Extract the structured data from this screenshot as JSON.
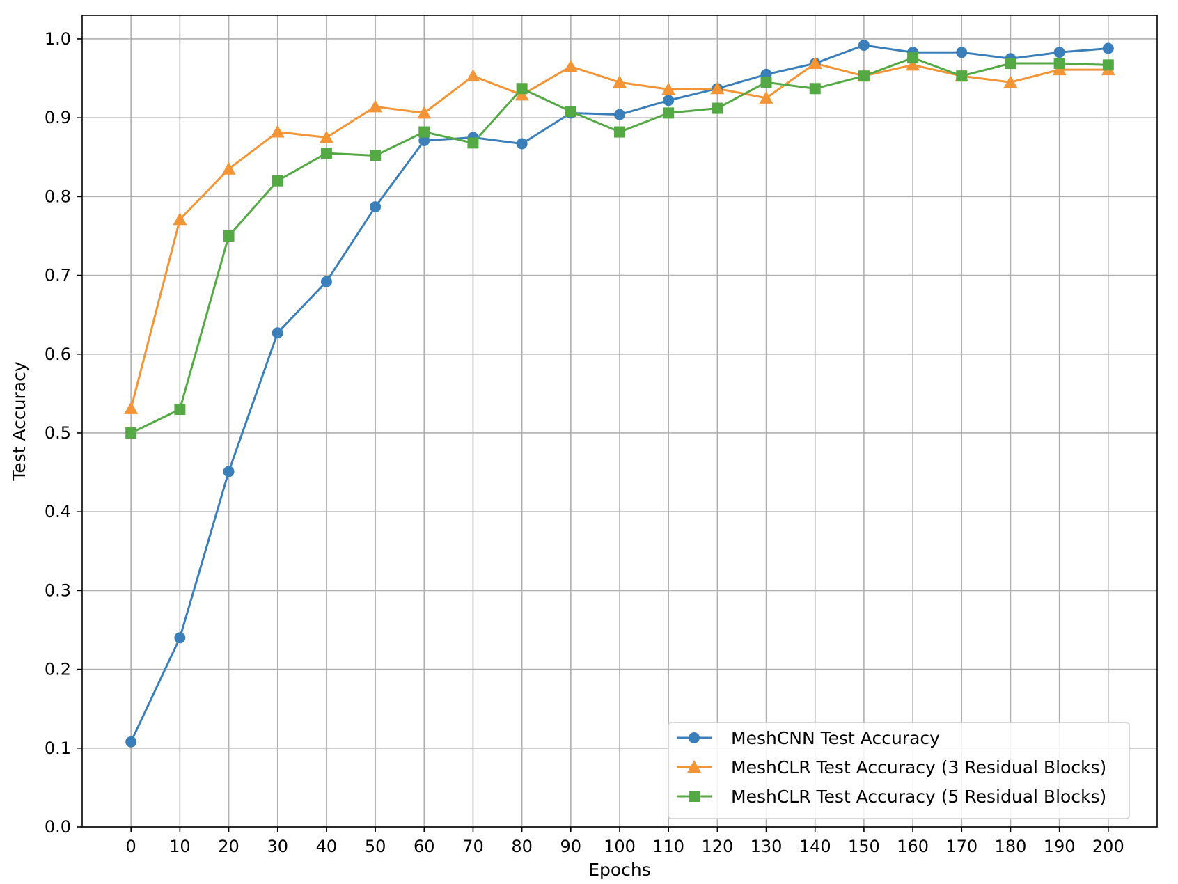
{
  "chart_data": {
    "type": "line",
    "xlabel": "Epochs",
    "ylabel": "Test Accuracy",
    "x": [
      0,
      10,
      20,
      30,
      40,
      50,
      60,
      70,
      80,
      90,
      100,
      110,
      120,
      130,
      140,
      150,
      160,
      170,
      180,
      190,
      200
    ],
    "xticks": [
      0,
      10,
      20,
      30,
      40,
      50,
      60,
      70,
      80,
      90,
      100,
      110,
      120,
      130,
      140,
      150,
      160,
      170,
      180,
      190,
      200
    ],
    "yticks": [
      "0.0",
      "0.1",
      "0.2",
      "0.3",
      "0.4",
      "0.5",
      "0.6",
      "0.7",
      "0.8",
      "0.9",
      "1.0"
    ],
    "xlim": [
      -10,
      210
    ],
    "ylim": [
      0.0,
      1.03
    ],
    "grid": true,
    "legend_position": "lower-right",
    "series": [
      {
        "name": "MeshCNN Test Accuracy",
        "color": "#3a7fba",
        "marker": "circle",
        "values": [
          0.108,
          0.24,
          0.451,
          0.627,
          0.692,
          0.787,
          0.871,
          0.875,
          0.867,
          0.906,
          0.904,
          0.922,
          0.937,
          0.955,
          0.969,
          0.992,
          0.983,
          0.983,
          0.975,
          0.983,
          0.988
        ]
      },
      {
        "name": "MeshCLR Test Accuracy (3 Residual Blocks)",
        "color": "#f39536",
        "marker": "triangle",
        "values": [
          0.531,
          0.771,
          0.835,
          0.882,
          0.875,
          0.914,
          0.906,
          0.953,
          0.929,
          0.965,
          0.945,
          0.936,
          0.937,
          0.925,
          0.969,
          0.953,
          0.967,
          0.953,
          0.945,
          0.961,
          0.961
        ]
      },
      {
        "name": "MeshCLR Test Accuracy (5 Residual Blocks)",
        "color": "#54a945",
        "marker": "square",
        "values": [
          0.5,
          0.53,
          0.75,
          0.82,
          0.855,
          0.852,
          0.882,
          0.868,
          0.937,
          0.908,
          0.882,
          0.906,
          0.912,
          0.945,
          0.937,
          0.953,
          0.976,
          0.953,
          0.969,
          0.969,
          0.967
        ]
      }
    ]
  }
}
